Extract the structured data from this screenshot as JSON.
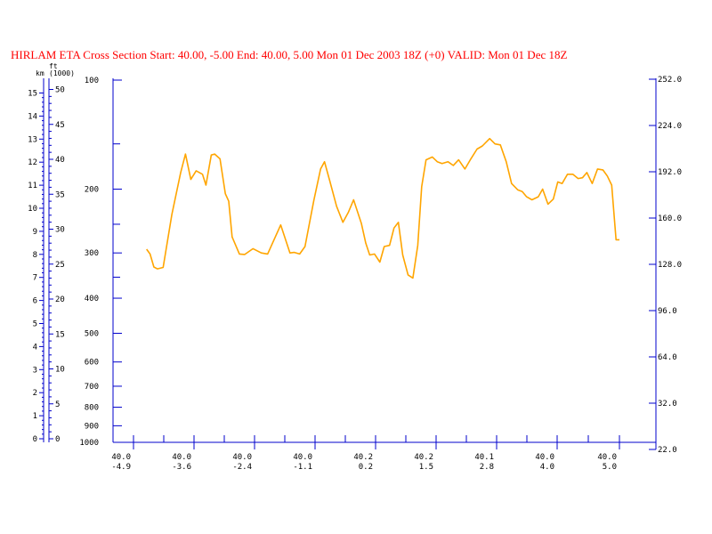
{
  "title": "HIRLAM ETA Cross Section Start: 40.00, -5.00 End: 40.00,  5.00 Mon 01 Dec 2003 18Z  (+0) VALID: Mon 01 Dec 18Z",
  "colors": {
    "title": "#ff0000",
    "axis": "#0000cc",
    "line": "#ffa500",
    "text": "#000000"
  },
  "km_axis": {
    "unit": "km",
    "ticks": [
      0,
      1,
      2,
      3,
      4,
      5,
      6,
      7,
      8,
      9,
      10,
      11,
      12,
      13,
      14,
      15
    ]
  },
  "ft_axis": {
    "unit": "ft",
    "unit_sub": "(1000)",
    "ticks": [
      0,
      5,
      10,
      15,
      20,
      25,
      30,
      35,
      40,
      45,
      50
    ]
  },
  "chart_data": {
    "type": "line",
    "title": "HIRLAM ETA Cross Section Start: 40.00, -5.00 End: 40.00,  5.00 Mon 01 Dec 2003 18Z  (+0) VALID: Mon 01 Dec 18Z",
    "y_left_ticks": [
      100,
      200,
      300,
      400,
      500,
      600,
      700,
      800,
      900,
      1000
    ],
    "y_left_scale": "log",
    "y_right_ticks": [
      "22.0",
      "32.0",
      "64.0",
      "96.0",
      "128.0",
      "160.0",
      "192.0",
      "224.0",
      "252.0"
    ],
    "x_ticks": [
      {
        "lat": "40.0",
        "lon": "-4.9"
      },
      {
        "lat": "40.0",
        "lon": "-3.6"
      },
      {
        "lat": "40.0",
        "lon": "-2.4"
      },
      {
        "lat": "40.0",
        "lon": "-1.1"
      },
      {
        "lat": "40.2",
        "lon": "0.2"
      },
      {
        "lat": "40.2",
        "lon": "1.5"
      },
      {
        "lat": "40.1",
        "lon": "2.8"
      },
      {
        "lat": "40.0",
        "lon": "4.0"
      },
      {
        "lat": "40.0",
        "lon": "5.0"
      }
    ],
    "xlim": [
      -5.0,
      5.0
    ],
    "series": [
      {
        "x": [
          -4.73,
          -4.66,
          -4.58,
          -4.51,
          -4.39,
          -4.21,
          -4.03,
          -3.93,
          -3.82,
          -3.71,
          -3.58,
          -3.51,
          -3.4,
          -3.33,
          -3.22,
          -3.11,
          -3.04,
          -2.97,
          -2.82,
          -2.71,
          -2.54,
          -2.37,
          -2.24,
          -1.97,
          -1.78,
          -1.69,
          -1.58,
          -1.47,
          -1.29,
          -1.15,
          -1.07,
          -0.96,
          -0.82,
          -0.69,
          -0.58,
          -0.47,
          -0.31,
          -0.22,
          -0.14,
          -0.04,
          0.07,
          0.16,
          0.27,
          0.36,
          0.45,
          0.54,
          0.65,
          0.75,
          0.85,
          0.93,
          1.02,
          1.15,
          1.25,
          1.35,
          1.47,
          1.58,
          1.69,
          1.82,
          1.93,
          2.07,
          2.18,
          2.33,
          2.44,
          2.55,
          2.67,
          2.78,
          2.91,
          3.0,
          3.09,
          3.2,
          3.33,
          3.42,
          3.53,
          3.64,
          3.73,
          3.82,
          3.93,
          4.04,
          4.15,
          4.24,
          4.33,
          4.44,
          4.55,
          4.66,
          4.75,
          4.84,
          4.93,
          5.0
        ],
        "y": [
          293,
          302,
          328,
          332,
          329,
          235,
          180,
          160,
          188,
          178,
          182,
          195,
          161,
          160,
          165,
          206,
          216,
          271,
          302,
          303,
          292,
          300,
          302,
          251,
          300,
          299,
          302,
          288,
          215,
          176,
          168,
          190,
          223,
          247,
          232,
          214,
          249,
          282,
          304,
          302,
          318,
          288,
          286,
          256,
          247,
          304,
          345,
          352,
          286,
          197,
          166,
          163,
          168,
          170,
          168,
          172,
          166,
          176,
          166,
          155,
          152,
          145,
          150,
          151,
          168,
          193,
          201,
          203,
          210,
          214,
          210,
          200,
          220,
          213,
          191,
          193,
          182,
          182,
          187,
          186,
          180,
          193,
          176,
          177,
          184,
          195,
          276,
          276
        ]
      }
    ]
  }
}
